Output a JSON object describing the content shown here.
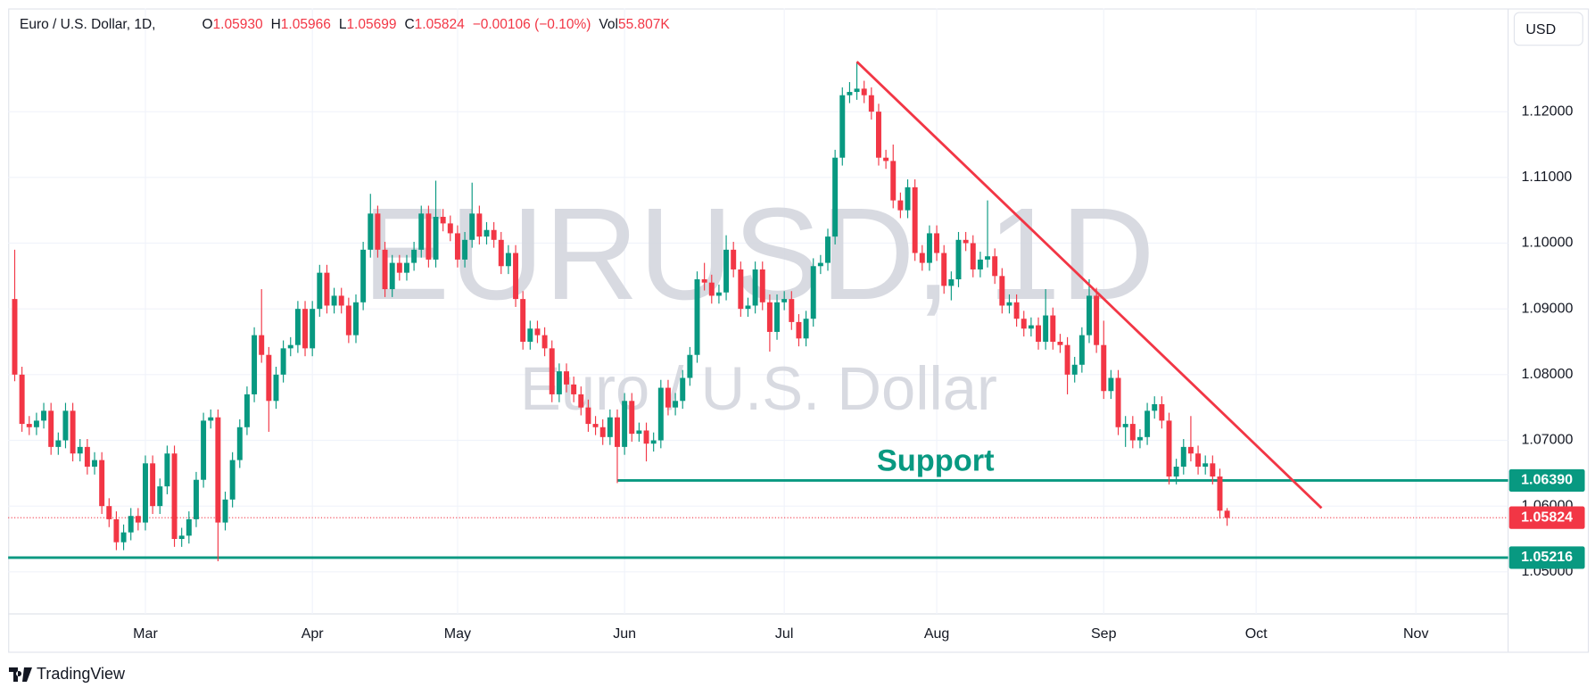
{
  "header": {
    "symbol": "Euro / U.S. Dollar, 1D,",
    "fields": [
      {
        "label": "O",
        "value": "1.05930"
      },
      {
        "label": "H",
        "value": "1.05966"
      },
      {
        "label": "L",
        "value": "1.05699"
      },
      {
        "label": "C",
        "value": "1.05824"
      }
    ],
    "change": "−0.00106 (−0.10%)",
    "volume": {
      "label": "Vol",
      "value": "55.807K"
    }
  },
  "currency": "USD",
  "brand": "TradingView",
  "chart_data": {
    "type": "candlestick",
    "watermark": {
      "symbol": "EURUSD, 1D",
      "description": "Euro / U.S. Dollar"
    },
    "up_color": "#089981",
    "down_color": "#f23645",
    "candles": [
      [
        1.0915,
        1.099,
        1.079,
        1.08
      ],
      [
        1.08,
        1.0812,
        1.0713,
        1.0725
      ],
      [
        1.0725,
        1.0737,
        1.0708,
        1.072
      ],
      [
        1.072,
        1.0742,
        1.0708,
        1.073
      ],
      [
        1.073,
        1.0757,
        1.0718,
        1.0745
      ],
      [
        1.0745,
        1.0757,
        1.0678,
        1.069
      ],
      [
        1.069,
        1.0712,
        1.0678,
        1.07
      ],
      [
        1.07,
        1.0757,
        1.0688,
        1.0745
      ],
      [
        1.0745,
        1.0757,
        1.0668,
        1.068
      ],
      [
        1.068,
        1.0702,
        1.0668,
        1.069
      ],
      [
        1.069,
        1.0702,
        1.0648,
        1.066
      ],
      [
        1.066,
        1.0682,
        1.0648,
        1.067
      ],
      [
        1.067,
        1.0682,
        1.0588,
        1.06
      ],
      [
        1.06,
        1.0612,
        1.0568,
        1.058
      ],
      [
        1.058,
        1.0592,
        1.0533,
        1.0545
      ],
      [
        1.0545,
        1.0572,
        1.0533,
        1.056
      ],
      [
        1.056,
        1.0597,
        1.0548,
        1.0585
      ],
      [
        1.0585,
        1.0597,
        1.0563,
        1.0575
      ],
      [
        1.0575,
        1.0677,
        1.0563,
        1.0665
      ],
      [
        1.0665,
        1.0677,
        1.0588,
        1.06
      ],
      [
        1.06,
        1.0642,
        1.0588,
        1.063
      ],
      [
        1.063,
        1.0692,
        1.0618,
        1.068
      ],
      [
        1.068,
        1.0692,
        1.0538,
        1.055
      ],
      [
        1.055,
        1.0567,
        1.0538,
        1.0555
      ],
      [
        1.0555,
        1.0592,
        1.0543,
        1.058
      ],
      [
        1.058,
        1.0652,
        1.0568,
        1.064
      ],
      [
        1.064,
        1.0742,
        1.0628,
        1.073
      ],
      [
        1.073,
        1.0747,
        1.0718,
        1.0735
      ],
      [
        1.0735,
        1.0747,
        1.0516,
        1.0575
      ],
      [
        1.0575,
        1.0622,
        1.0563,
        1.061
      ],
      [
        1.061,
        1.0682,
        1.0598,
        1.067
      ],
      [
        1.067,
        1.0732,
        1.0658,
        1.072
      ],
      [
        1.072,
        1.0782,
        1.0708,
        1.077
      ],
      [
        1.077,
        1.0872,
        1.0758,
        1.086
      ],
      [
        1.086,
        1.093,
        1.0818,
        1.083
      ],
      [
        1.083,
        1.0842,
        1.0713,
        1.076
      ],
      [
        1.076,
        1.0812,
        1.0748,
        1.08
      ],
      [
        1.08,
        1.0852,
        1.0788,
        1.084
      ],
      [
        1.084,
        1.0857,
        1.0828,
        1.0845
      ],
      [
        1.0845,
        1.0912,
        1.0833,
        1.09
      ],
      [
        1.09,
        1.0912,
        1.0828,
        1.084
      ],
      [
        1.084,
        1.0912,
        1.0828,
        1.09
      ],
      [
        1.09,
        1.0967,
        1.0888,
        1.0955
      ],
      [
        1.0955,
        1.0967,
        1.0893,
        1.0905
      ],
      [
        1.0905,
        1.0932,
        1.0893,
        1.092
      ],
      [
        1.092,
        1.0932,
        1.0893,
        1.0905
      ],
      [
        1.0905,
        1.0917,
        1.0848,
        1.086
      ],
      [
        1.086,
        1.0922,
        1.0848,
        1.091
      ],
      [
        1.091,
        1.1002,
        1.0898,
        1.099
      ],
      [
        1.099,
        1.1075,
        1.0978,
        1.1045
      ],
      [
        1.1045,
        1.1057,
        1.0978,
        1.099
      ],
      [
        1.099,
        1.1002,
        1.0918,
        1.093
      ],
      [
        1.093,
        1.0982,
        1.0918,
        1.097
      ],
      [
        1.097,
        1.0982,
        1.0943,
        1.0955
      ],
      [
        1.0955,
        1.0982,
        1.0943,
        1.097
      ],
      [
        1.097,
        1.1002,
        1.0958,
        1.099
      ],
      [
        1.099,
        1.1057,
        1.0978,
        1.1045
      ],
      [
        1.1045,
        1.1057,
        1.0963,
        1.0975
      ],
      [
        1.0975,
        1.1095,
        1.0963,
        1.104
      ],
      [
        1.104,
        1.1052,
        1.1018,
        1.103
      ],
      [
        1.103,
        1.1042,
        1.1003,
        1.1015
      ],
      [
        1.1015,
        1.1027,
        1.0963,
        1.0975
      ],
      [
        1.0975,
        1.1017,
        1.0963,
        1.1005
      ],
      [
        1.1005,
        1.1092,
        1.0993,
        1.1045
      ],
      [
        1.1045,
        1.1057,
        1.0998,
        1.101
      ],
      [
        1.101,
        1.1032,
        1.0998,
        1.102
      ],
      [
        1.102,
        1.1032,
        1.0993,
        1.1005
      ],
      [
        1.1005,
        1.1017,
        1.0953,
        1.0965
      ],
      [
        1.0965,
        1.0997,
        1.0953,
        1.0985
      ],
      [
        1.0985,
        1.0997,
        1.0903,
        1.0915
      ],
      [
        1.0915,
        1.0927,
        1.0838,
        1.085
      ],
      [
        1.085,
        1.0882,
        1.0838,
        1.087
      ],
      [
        1.087,
        1.0882,
        1.0848,
        1.086
      ],
      [
        1.086,
        1.0872,
        1.0828,
        1.084
      ],
      [
        1.084,
        1.0852,
        1.0758,
        1.077
      ],
      [
        1.077,
        1.0817,
        1.0758,
        1.0805
      ],
      [
        1.0805,
        1.0817,
        1.0773,
        1.0785
      ],
      [
        1.0785,
        1.0797,
        1.0758,
        1.077
      ],
      [
        1.077,
        1.0782,
        1.0738,
        1.075
      ],
      [
        1.075,
        1.0762,
        1.0713,
        1.0725
      ],
      [
        1.0725,
        1.0737,
        1.0708,
        1.072
      ],
      [
        1.072,
        1.0732,
        1.0693,
        1.0705
      ],
      [
        1.0705,
        1.0747,
        1.0693,
        1.0735
      ],
      [
        1.0735,
        1.0747,
        1.0635,
        1.069
      ],
      [
        1.069,
        1.0772,
        1.0678,
        1.076
      ],
      [
        1.076,
        1.0772,
        1.0698,
        1.071
      ],
      [
        1.071,
        1.0727,
        1.0698,
        1.0715
      ],
      [
        1.0715,
        1.0727,
        1.0668,
        1.0695
      ],
      [
        1.0695,
        1.0712,
        1.0683,
        1.07
      ],
      [
        1.07,
        1.0792,
        1.0688,
        1.078
      ],
      [
        1.078,
        1.0792,
        1.0738,
        1.075
      ],
      [
        1.075,
        1.0772,
        1.0738,
        1.076
      ],
      [
        1.076,
        1.0807,
        1.0748,
        1.0795
      ],
      [
        1.0795,
        1.0842,
        1.0783,
        1.083
      ],
      [
        1.083,
        1.0957,
        1.0818,
        1.0945
      ],
      [
        1.0945,
        1.097,
        1.0928,
        1.094
      ],
      [
        1.094,
        1.0952,
        1.0908,
        1.092
      ],
      [
        1.092,
        1.0937,
        1.0908,
        1.0925
      ],
      [
        1.0925,
        1.1012,
        1.0913,
        1.099
      ],
      [
        1.099,
        1.1002,
        1.0948,
        1.096
      ],
      [
        1.096,
        1.0972,
        1.0888,
        1.09
      ],
      [
        1.09,
        1.0917,
        1.0888,
        1.0905
      ],
      [
        1.0905,
        1.0972,
        1.0893,
        1.096
      ],
      [
        1.096,
        1.0972,
        1.0898,
        1.091
      ],
      [
        1.091,
        1.0922,
        1.0835,
        1.0865
      ],
      [
        1.0865,
        1.0922,
        1.0853,
        1.091
      ],
      [
        1.091,
        1.0927,
        1.0898,
        1.0915
      ],
      [
        1.0915,
        1.0927,
        1.0868,
        1.088
      ],
      [
        1.088,
        1.0892,
        1.0843,
        1.0855
      ],
      [
        1.0855,
        1.0897,
        1.0843,
        1.0885
      ],
      [
        1.0885,
        1.0977,
        1.0873,
        1.0965
      ],
      [
        1.0965,
        1.0982,
        1.0953,
        1.097
      ],
      [
        1.097,
        1.1022,
        1.0958,
        1.101
      ],
      [
        1.101,
        1.1142,
        1.0998,
        1.113
      ],
      [
        1.113,
        1.1237,
        1.1118,
        1.1225
      ],
      [
        1.1225,
        1.1245,
        1.1213,
        1.123
      ],
      [
        1.123,
        1.1276,
        1.1218,
        1.1235
      ],
      [
        1.1235,
        1.1247,
        1.1213,
        1.1225
      ],
      [
        1.1225,
        1.1237,
        1.1188,
        1.12
      ],
      [
        1.12,
        1.1212,
        1.1118,
        1.113
      ],
      [
        1.113,
        1.1142,
        1.1113,
        1.1125
      ],
      [
        1.1125,
        1.115,
        1.1053,
        1.1065
      ],
      [
        1.1065,
        1.1077,
        1.1038,
        1.105
      ],
      [
        1.105,
        1.1097,
        1.1038,
        1.1085
      ],
      [
        1.1085,
        1.1097,
        1.0973,
        1.0985
      ],
      [
        1.0985,
        1.0997,
        1.0958,
        1.097
      ],
      [
        1.097,
        1.1027,
        1.0958,
        1.1015
      ],
      [
        1.1015,
        1.1027,
        1.0973,
        1.0985
      ],
      [
        1.0985,
        1.0997,
        1.0923,
        1.0935
      ],
      [
        1.0935,
        1.0957,
        1.0913,
        1.0945
      ],
      [
        1.0945,
        1.1017,
        1.0933,
        1.1005
      ],
      [
        1.1005,
        1.1017,
        1.0988,
        1.1
      ],
      [
        1.1,
        1.1012,
        1.0948,
        1.096
      ],
      [
        1.096,
        1.0987,
        1.0948,
        1.0975
      ],
      [
        1.0975,
        1.1065,
        1.0963,
        1.098
      ],
      [
        1.098,
        1.0992,
        1.0938,
        1.095
      ],
      [
        1.095,
        1.0962,
        1.0893,
        1.0905
      ],
      [
        1.0905,
        1.0922,
        1.0893,
        1.091
      ],
      [
        1.091,
        1.0922,
        1.0873,
        1.0885
      ],
      [
        1.0885,
        1.0897,
        1.0858,
        1.087
      ],
      [
        1.087,
        1.0887,
        1.0858,
        1.0875
      ],
      [
        1.0875,
        1.0887,
        1.0838,
        1.085
      ],
      [
        1.085,
        1.093,
        1.0838,
        1.089
      ],
      [
        1.089,
        1.0902,
        1.0838,
        1.085
      ],
      [
        1.085,
        1.0862,
        1.0833,
        1.0845
      ],
      [
        1.0845,
        1.0857,
        1.077,
        1.08
      ],
      [
        1.08,
        1.0827,
        1.0788,
        1.0815
      ],
      [
        1.0815,
        1.0872,
        1.0803,
        1.086
      ],
      [
        1.086,
        1.0945,
        1.0848,
        1.092
      ],
      [
        1.092,
        1.0932,
        1.0833,
        1.0845
      ],
      [
        1.0845,
        1.0882,
        1.0763,
        1.0775
      ],
      [
        1.0775,
        1.0807,
        1.0763,
        1.0795
      ],
      [
        1.0795,
        1.0807,
        1.0708,
        1.072
      ],
      [
        1.072,
        1.0737,
        1.069,
        1.0725
      ],
      [
        1.0725,
        1.0737,
        1.0688,
        1.07
      ],
      [
        1.07,
        1.0717,
        1.0688,
        1.0705
      ],
      [
        1.0705,
        1.0757,
        1.0693,
        1.0745
      ],
      [
        1.0745,
        1.0767,
        1.0733,
        1.0755
      ],
      [
        1.0755,
        1.0767,
        1.0718,
        1.073
      ],
      [
        1.073,
        1.0742,
        1.0633,
        1.0645
      ],
      [
        1.0645,
        1.0672,
        1.0633,
        1.066
      ],
      [
        1.066,
        1.0702,
        1.0648,
        1.069
      ],
      [
        1.069,
        1.0737,
        1.0668,
        1.068
      ],
      [
        1.068,
        1.0692,
        1.0648,
        1.066
      ],
      [
        1.066,
        1.0677,
        1.0648,
        1.0665
      ],
      [
        1.0665,
        1.0677,
        1.0633,
        1.0645
      ],
      [
        1.0645,
        1.0657,
        1.0581,
        1.0593
      ],
      [
        1.0593,
        1.0597,
        1.057,
        1.0582
      ]
    ],
    "xlim": [
      -0.9,
      205.7
    ],
    "xticks": [
      {
        "value": 18,
        "label": "Mar"
      },
      {
        "value": 41,
        "label": "Apr"
      },
      {
        "value": 61,
        "label": "May"
      },
      {
        "value": 84,
        "label": "Jun"
      },
      {
        "value": 106,
        "label": "Jul"
      },
      {
        "value": 127,
        "label": "Aug"
      },
      {
        "value": 150,
        "label": "Sep"
      },
      {
        "value": 171,
        "label": "Oct"
      },
      {
        "value": 193,
        "label": "Nov"
      }
    ],
    "ylim": [
      1.0436,
      1.1357
    ],
    "yticks": [
      {
        "value": 1.05,
        "label": "1.05000"
      },
      {
        "value": 1.06,
        "label": "1.06000"
      },
      {
        "value": 1.07,
        "label": "1.07000"
      },
      {
        "value": 1.08,
        "label": "1.08000"
      },
      {
        "value": 1.09,
        "label": "1.09000"
      },
      {
        "value": 1.1,
        "label": "1.10000"
      },
      {
        "value": 1.11,
        "label": "1.11000"
      },
      {
        "value": 1.12,
        "label": "1.12000"
      }
    ],
    "grid": true,
    "last_price": {
      "value": 1.05824,
      "label": "1.05824",
      "color": "#f23645"
    },
    "levels": [
      {
        "value": 1.0639,
        "label": "1.06390",
        "start": 83,
        "color": "#089981"
      },
      {
        "value": 1.05216,
        "label": "1.05216",
        "color": "#089981"
      }
    ],
    "trendline": {
      "x": [
        116,
        180
      ],
      "y": [
        1.1276,
        1.0597
      ],
      "color": "#f23645"
    },
    "annotation": {
      "text": "Support",
      "color": "#089981"
    }
  }
}
